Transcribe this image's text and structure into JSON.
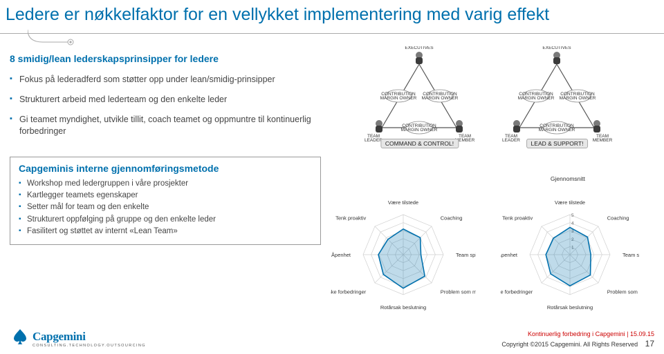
{
  "slide": {
    "title": "Ledere er nøkkelfaktor for en vellykket implementering med varig effekt",
    "section_heading": "8 smidig/lean lederskapsprinsipper for ledere",
    "bullets": [
      "Fokus på lederadferd som støtter opp under lean/smidig-prinsipper",
      "Strukturert arbeid med lederteam og den enkelte leder",
      "Gi teamet myndighet, utvikle tillit, coach teamet og oppmuntre til kontinuerlig forbedringer"
    ]
  },
  "method_box": {
    "title": "Capgeminis interne gjennomføringsmetode",
    "items": [
      "Workshop med ledergruppen i våre prosjekter",
      "Kartlegger teamets egenskaper",
      "Setter mål for team og den enkelte",
      "Strukturert oppfølging på gruppe og den enkelte leder",
      "Fasilitert og støttet av internt «Lean Team»"
    ]
  },
  "triangles": {
    "corner_labels": {
      "top": "EXECUTIVES",
      "left": "TEAM LEADER",
      "right": "TEAM MEMBER"
    },
    "mid_labels": "CONTRIBUTION MARGIN OWNER",
    "left_caption": "COMMAND & CONTROL!",
    "right_caption": "LEAD & SUPPORT!",
    "colors": {
      "head": "#7a7a7a",
      "body": "#3b3b3b",
      "line": "#555"
    }
  },
  "radar": {
    "rings": 5,
    "axes": [
      "Være tilstede",
      "Coaching",
      "Team spirit",
      "Problem som mulighet",
      "Rotårsak beslutning",
      "Raske forbedringer",
      "Åpenhet",
      "Tenk proaktiv"
    ],
    "avg_title": "Gjennomsnitt",
    "left": {
      "values": [
        3.2,
        3.0,
        2.2,
        3.8,
        4.2,
        3.5,
        3.1,
        2.7
      ],
      "line_color": "#0070ad",
      "fill_color": "rgba(0,112,173,0.25)",
      "grid_color": "#cfcfcf"
    },
    "right": {
      "values": [
        3.4,
        3.1,
        2.6,
        3.6,
        3.9,
        3.4,
        3.0,
        2.9
      ],
      "line_color": "#0070ad",
      "fill_color": "rgba(0,112,173,0.25)",
      "grid_color": "#cfcfcf",
      "numbers": [
        1,
        2,
        3,
        4,
        5
      ]
    },
    "max": 5,
    "label_fontsize": 7.5
  },
  "footer": {
    "logo_text": "Capgemini",
    "logo_tagline": "CONSULTING.TECHNOLOGY.OUTSOURCING",
    "red_line": "Kontinuerlig forbedring i Capgemini | 15.09.15",
    "copyright": "Copyright ©2015 Capgemini. All Rights Reserved",
    "page": "17",
    "brand_blue": "#0070ad"
  }
}
